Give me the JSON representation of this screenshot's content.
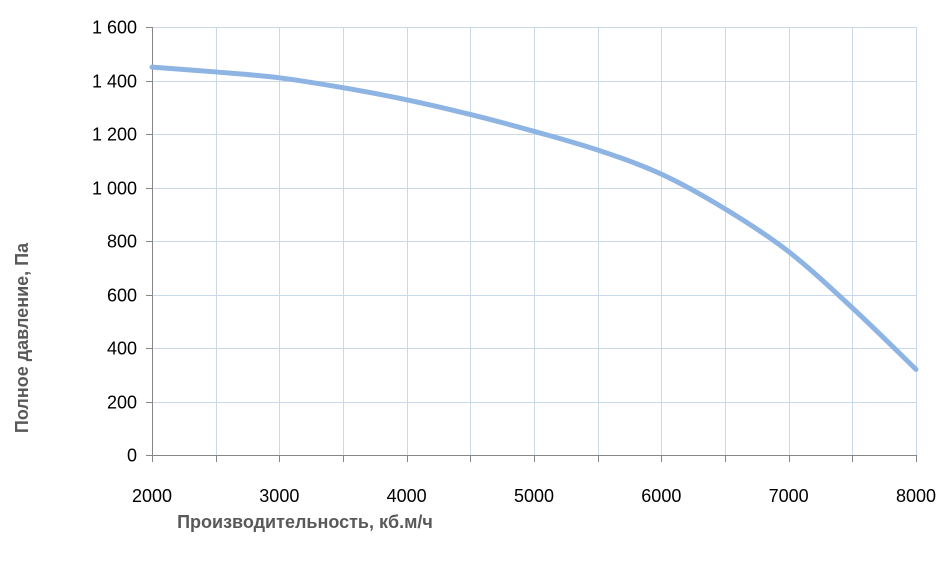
{
  "chart_data": {
    "type": "line",
    "title": "",
    "xlabel": "Производительность, кб.м/ч",
    "ylabel": "Полное  давление, Па",
    "xlim": [
      2000,
      8000
    ],
    "ylim": [
      0,
      1600
    ],
    "x_ticks": [
      2000,
      3000,
      4000,
      5000,
      6000,
      7000,
      8000
    ],
    "x_tick_labels": [
      "2000",
      "3000",
      "4000",
      "5000",
      "6000",
      "7000",
      "8000"
    ],
    "y_ticks": [
      0,
      200,
      400,
      600,
      800,
      1000,
      1200,
      1400,
      1600
    ],
    "y_tick_labels": [
      "0",
      "200",
      "400",
      "600",
      "800",
      "1 000",
      "1 200",
      "1 400",
      "1 600"
    ],
    "x_minor_gridlines": [
      2500,
      3500,
      4500,
      5500,
      6500,
      7500
    ],
    "grid": true,
    "legend": "none",
    "series": [
      {
        "color": "#8EB4E3",
        "x": [
          2000,
          2500,
          3000,
          3500,
          4000,
          4500,
          5000,
          5500,
          6000,
          6500,
          7000,
          7500,
          8000
        ],
        "y": [
          1450,
          1432,
          1410,
          1373,
          1328,
          1273,
          1210,
          1140,
          1050,
          920,
          760,
          550,
          320
        ]
      }
    ]
  }
}
